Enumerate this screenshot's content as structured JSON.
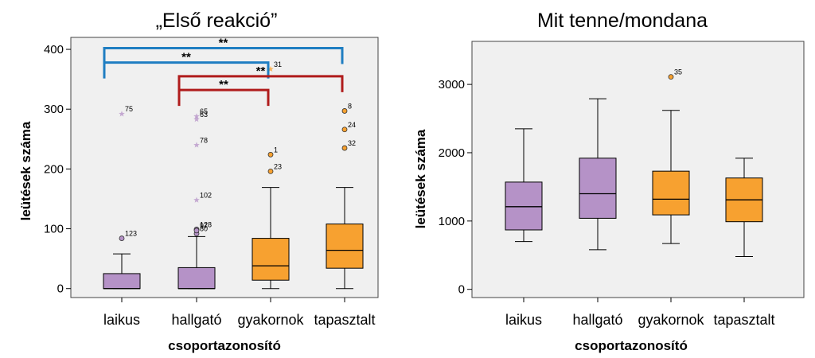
{
  "colors": {
    "purple": "#b592c7",
    "orange": "#f7a130",
    "blue": "#1f7ec2",
    "red": "#b01c1c",
    "plot_bg": "#f0f0f0"
  },
  "chart_data": [
    {
      "type": "box",
      "title": "„Első reakció”",
      "xlabel": "csoportazonosító",
      "ylabel": "leütések száma",
      "ylim": [
        -15,
        420
      ],
      "yticks": [
        0,
        100,
        200,
        300,
        400
      ],
      "categories": [
        "laikus",
        "hallgató",
        "gyakornok",
        "tapasztalt"
      ],
      "boxes": [
        {
          "category": "laikus",
          "color": "purple",
          "whisker_low": 0,
          "q1": 0,
          "median": 0,
          "q3": 25,
          "whisker_high": 58,
          "outliers": [
            {
              "value": 84,
              "label": "123",
              "kind": "circle"
            },
            {
              "value": 292,
              "label": "75",
              "kind": "star"
            }
          ]
        },
        {
          "category": "hallgató",
          "color": "purple",
          "whisker_low": 0,
          "q1": 0,
          "median": 0,
          "q3": 35,
          "whisker_high": 87,
          "outliers": [
            {
              "value": 92,
              "label": "80",
              "kind": "circle"
            },
            {
              "value": 99,
              "label": "128",
              "kind": "circle"
            },
            {
              "value": 97,
              "label": "97",
              "kind": "circle"
            },
            {
              "value": 148,
              "label": "102",
              "kind": "star"
            },
            {
              "value": 240,
              "label": "78",
              "kind": "star"
            },
            {
              "value": 283,
              "label": "63",
              "kind": "star"
            },
            {
              "value": 288,
              "label": "65",
              "kind": "star"
            }
          ]
        },
        {
          "category": "gyakornok",
          "color": "orange",
          "whisker_low": 0,
          "q1": 14,
          "median": 38,
          "q3": 84,
          "whisker_high": 169,
          "outliers": [
            {
              "value": 196,
              "label": "23",
              "kind": "circle"
            },
            {
              "value": 224,
              "label": "1",
              "kind": "circle"
            },
            {
              "value": 367,
              "label": "31",
              "kind": "star"
            }
          ]
        },
        {
          "category": "tapasztalt",
          "color": "orange",
          "whisker_low": 0,
          "q1": 34,
          "median": 64,
          "q3": 108,
          "whisker_high": 169,
          "outliers": [
            {
              "value": 235,
              "label": "32",
              "kind": "circle"
            },
            {
              "value": 266,
              "label": "24",
              "kind": "circle"
            },
            {
              "value": 297,
              "label": "8",
              "kind": "circle"
            }
          ]
        }
      ],
      "significance": [
        {
          "from": "laikus",
          "to": "tapasztalt",
          "label": "**",
          "color": "blue",
          "level": 402
        },
        {
          "from": "laikus",
          "to": "gyakornok",
          "label": "**",
          "color": "blue",
          "level": 378
        },
        {
          "from": "hallgató",
          "to": "tapasztalt",
          "label": "**",
          "color": "red",
          "level": 355
        },
        {
          "from": "hallgató",
          "to": "gyakornok",
          "label": "**",
          "color": "red",
          "level": 332
        }
      ]
    },
    {
      "type": "box",
      "title": "Mit tenne/mondana",
      "xlabel": "csoportazonosító",
      "ylabel": "leütések száma",
      "ylim": [
        -120,
        3630
      ],
      "yticks": [
        0,
        1000,
        2000,
        3000
      ],
      "categories": [
        "laikus",
        "hallgató",
        "gyakornok",
        "tapasztalt"
      ],
      "boxes": [
        {
          "category": "laikus",
          "color": "purple",
          "whisker_low": 700,
          "q1": 870,
          "median": 1210,
          "q3": 1570,
          "whisker_high": 2350,
          "outliers": []
        },
        {
          "category": "hallgató",
          "color": "purple",
          "whisker_low": 580,
          "q1": 1040,
          "median": 1400,
          "q3": 1920,
          "whisker_high": 2790,
          "outliers": []
        },
        {
          "category": "gyakornok",
          "color": "orange",
          "whisker_low": 670,
          "q1": 1090,
          "median": 1320,
          "q3": 1730,
          "whisker_high": 2620,
          "outliers": [
            {
              "value": 3110,
              "label": "35",
              "kind": "circle"
            }
          ]
        },
        {
          "category": "tapasztalt",
          "color": "orange",
          "whisker_low": 480,
          "q1": 990,
          "median": 1310,
          "q3": 1630,
          "whisker_high": 1920,
          "outliers": []
        }
      ]
    }
  ]
}
